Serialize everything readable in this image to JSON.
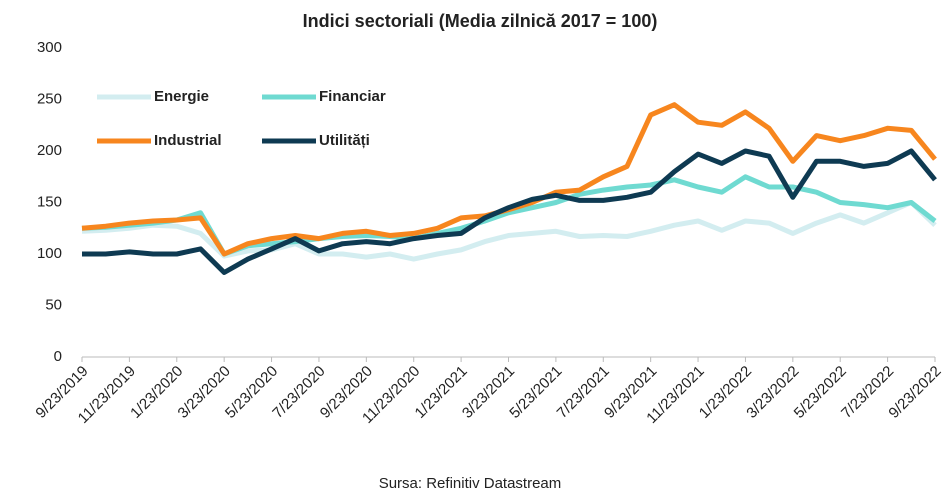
{
  "chart_data": {
    "type": "line",
    "title": "Indici sectoriali (Media zilnică 2017 = 100)",
    "source": "Sursa: Refinitiv Datastream",
    "categories": [
      "9/23/2019",
      null,
      "11/23/2019",
      null,
      "1/23/2020",
      null,
      "3/23/2020",
      null,
      "5/23/2020",
      null,
      "7/23/2020",
      null,
      "9/23/2020",
      null,
      "11/23/2020",
      null,
      "1/23/2021",
      null,
      "3/23/2021",
      null,
      "5/23/2021",
      null,
      "7/23/2021",
      null,
      "9/23/2021",
      null,
      "11/23/2021",
      null,
      "1/23/2022",
      null,
      "3/23/2022",
      null,
      "5/23/2022",
      null,
      "7/23/2022",
      null,
      "9/23/2022"
    ],
    "series": [
      {
        "name": "Energie",
        "color": "#d3edf0",
        "values": [
          122,
          123,
          125,
          128,
          127,
          120,
          98,
          103,
          104,
          110,
          100,
          100,
          97,
          100,
          95,
          100,
          104,
          112,
          118,
          120,
          122,
          117,
          118,
          117,
          122,
          128,
          132,
          123,
          132,
          130,
          120,
          130,
          138,
          130,
          140,
          150,
          128
        ]
      },
      {
        "name": "Financiar",
        "color": "#6fdad1",
        "values": [
          125,
          126,
          128,
          130,
          133,
          140,
          100,
          108,
          110,
          112,
          115,
          117,
          118,
          117,
          115,
          120,
          125,
          132,
          140,
          145,
          150,
          158,
          162,
          165,
          167,
          172,
          165,
          160,
          175,
          165,
          165,
          160,
          150,
          148,
          145,
          150,
          132
        ]
      },
      {
        "name": "Industrial",
        "color": "#f7861e",
        "values": [
          125,
          127,
          130,
          132,
          133,
          135,
          100,
          110,
          115,
          118,
          115,
          120,
          122,
          118,
          120,
          125,
          135,
          137,
          143,
          150,
          160,
          162,
          175,
          185,
          235,
          245,
          228,
          225,
          238,
          222,
          190,
          215,
          210,
          215,
          222,
          220,
          192
        ]
      },
      {
        "name": "Utilități",
        "color": "#0e3a52",
        "values": [
          100,
          100,
          102,
          100,
          100,
          105,
          82,
          95,
          105,
          115,
          103,
          110,
          112,
          110,
          115,
          118,
          120,
          135,
          145,
          153,
          157,
          152,
          152,
          155,
          160,
          180,
          197,
          188,
          200,
          195,
          155,
          190,
          190,
          185,
          188,
          200,
          172
        ]
      }
    ],
    "ylim": [
      0,
      300
    ],
    "yticks": [
      0,
      50,
      100,
      150,
      200,
      250,
      300
    ],
    "grid": false
  }
}
